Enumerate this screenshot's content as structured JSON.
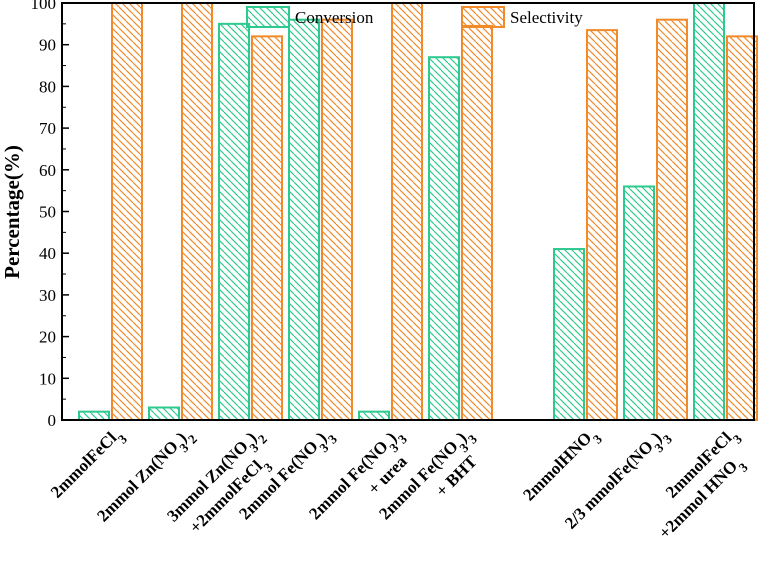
{
  "chart_data": {
    "type": "bar",
    "title": "",
    "xlabel": "",
    "ylabel": "Percentage(%)",
    "ylim": [
      0,
      100
    ],
    "yticks": [
      0,
      10,
      20,
      30,
      40,
      50,
      60,
      70,
      80,
      90,
      100
    ],
    "ytick_labels": [
      "0",
      "10",
      "20",
      "30",
      "40",
      "50",
      "60",
      "70",
      "80",
      "90",
      "100"
    ],
    "grid": false,
    "legend_position": "top-center",
    "categories": [
      {
        "label": "2mmolFeCl3",
        "parts": [
          [
            "2mmolFeCl",
            ""
          ],
          [
            "3",
            "sub"
          ]
        ],
        "line2": []
      },
      {
        "label": "2mmol Zn(NO3)2",
        "parts": [
          [
            "2mmol Zn(NO",
            ""
          ],
          [
            "3",
            "sub"
          ],
          [
            ")",
            ""
          ],
          [
            "2",
            "sub"
          ]
        ],
        "line2": []
      },
      {
        "label": "3mmol Zn(NO3)2 +2mmolFeCl3",
        "parts": [
          [
            "3mmol Zn(NO",
            ""
          ],
          [
            "3",
            "sub"
          ],
          [
            ")",
            ""
          ],
          [
            "2",
            "sub"
          ]
        ],
        "line2": [
          [
            "+2mmolFeCl",
            ""
          ],
          [
            "3",
            "sub"
          ]
        ]
      },
      {
        "label": "2mmol Fe(NO3)3",
        "parts": [
          [
            "2mmol Fe(NO",
            ""
          ],
          [
            "3",
            "sub"
          ],
          [
            ")",
            ""
          ],
          [
            "3",
            "sub"
          ]
        ],
        "line2": []
      },
      {
        "label": "2mmol Fe(NO3)3 + urea",
        "parts": [
          [
            "2mmol Fe(NO",
            ""
          ],
          [
            "3",
            "sub"
          ],
          [
            ")",
            ""
          ],
          [
            "3",
            "sub"
          ]
        ],
        "line2": [
          [
            "+ urea",
            ""
          ]
        ]
      },
      {
        "label": "2mmol Fe(NO3)3 + BHT",
        "parts": [
          [
            "2mmol Fe(NO",
            ""
          ],
          [
            "3",
            "sub"
          ],
          [
            ")",
            ""
          ],
          [
            "3",
            "sub"
          ]
        ],
        "line2": [
          [
            "+ BHT",
            ""
          ]
        ]
      },
      {
        "label": "2mmolHNO3",
        "parts": [
          [
            "2mmolHNO",
            ""
          ],
          [
            "3",
            "sub"
          ]
        ],
        "line2": []
      },
      {
        "label": "2/3 mmolFe(NO3)3",
        "parts": [
          [
            "2/3 mmolFe(NO",
            ""
          ],
          [
            "3",
            "sub"
          ],
          [
            ")",
            ""
          ],
          [
            "3",
            "sub"
          ]
        ],
        "line2": []
      },
      {
        "label": "2mmolFeCl3 +2mmol HNO3",
        "parts": [
          [
            "2mmolFeCl",
            ""
          ],
          [
            "3",
            "sub"
          ]
        ],
        "line2": [
          [
            "+2mmol HNO",
            ""
          ],
          [
            "3",
            "sub"
          ]
        ]
      }
    ],
    "series": [
      {
        "name": "Conversion",
        "color": "#2ec98f",
        "hatch": "backslash",
        "values": [
          2,
          3,
          95,
          96,
          2,
          87,
          41,
          56,
          100
        ]
      },
      {
        "name": "Selectivity",
        "color": "#f08a2a",
        "hatch": "backslash",
        "values": [
          100,
          100,
          92,
          96,
          100,
          94.5,
          93.5,
          96,
          92
        ]
      }
    ]
  }
}
